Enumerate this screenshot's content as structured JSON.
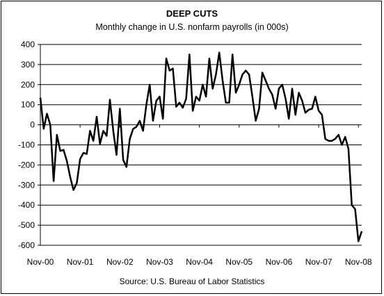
{
  "chart_data": {
    "type": "line",
    "title": "DEEP CUTS",
    "subtitle": "Monthly change in U.S. nonfarm payrolls (in 000s)",
    "source": "Source: U.S. Bureau of Labor Statistics",
    "ylim": [
      -600,
      400
    ],
    "yticks": [
      400,
      300,
      200,
      100,
      0,
      -100,
      -200,
      -300,
      -400,
      -500,
      -600
    ],
    "xtick_labels": [
      "Nov-00",
      "Nov-01",
      "Nov-02",
      "Nov-03",
      "Nov-04",
      "Nov-05",
      "Nov-06",
      "Nov-07",
      "Nov-08"
    ],
    "grid": true,
    "line_color": "#000000",
    "series": [
      {
        "values": [
          135,
          -20,
          55,
          0,
          -280,
          -50,
          -130,
          -125,
          -180,
          -260,
          -325,
          -290,
          -170,
          -140,
          -145,
          -30,
          -80,
          40,
          -95,
          -30,
          -55,
          125,
          -30,
          -150,
          80,
          -175,
          -210,
          -70,
          -20,
          -10,
          20,
          -30,
          100,
          200,
          20,
          120,
          140,
          30,
          330,
          270,
          280,
          90,
          110,
          85,
          130,
          350,
          70,
          140,
          120,
          200,
          140,
          330,
          180,
          250,
          360,
          220,
          110,
          110,
          350,
          160,
          200,
          250,
          270,
          250,
          140,
          20,
          80,
          260,
          220,
          180,
          150,
          80,
          180,
          200,
          130,
          30,
          180,
          50,
          160,
          120,
          60,
          75,
          80,
          140,
          70,
          50,
          -70,
          -80,
          -80,
          -70,
          -50,
          -100,
          -60,
          -120,
          -400,
          -420,
          -580,
          -530
        ]
      }
    ]
  }
}
